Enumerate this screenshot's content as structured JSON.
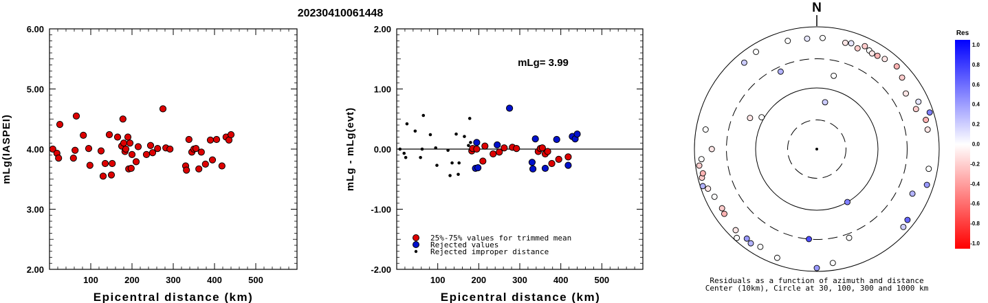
{
  "title": "20230410061448",
  "colors": {
    "accepted": "#dd0000",
    "rejected": "#0011cc",
    "improper": "#000000"
  },
  "chart_data": [
    {
      "type": "scatter",
      "id": "left",
      "xlabel": "Epicentral distance (km)",
      "ylabel": "mLg(IASPEI)",
      "xlim": [
        0,
        600
      ],
      "ylim": [
        2.0,
        6.0
      ],
      "xticks": [
        "100",
        "200",
        "300",
        "400",
        "500"
      ],
      "yticks": [
        "2.00",
        "3.00",
        "4.00",
        "5.00",
        "6.00"
      ],
      "series": [
        {
          "marker": "accepted",
          "points": [
            [
              8,
              4.0
            ],
            [
              18,
              3.93
            ],
            [
              22,
              3.85
            ],
            [
              25,
              4.41
            ],
            [
              58,
              3.85
            ],
            [
              62,
              3.98
            ],
            [
              65,
              4.55
            ],
            [
              82,
              4.23
            ],
            [
              95,
              4.01
            ],
            [
              98,
              3.73
            ],
            [
              125,
              3.97
            ],
            [
              130,
              3.55
            ],
            [
              135,
              3.76
            ],
            [
              145,
              4.24
            ],
            [
              150,
              3.57
            ],
            [
              152,
              3.76
            ],
            [
              165,
              4.2
            ],
            [
              175,
              4.05
            ],
            [
              178,
              4.5
            ],
            [
              180,
              4.1
            ],
            [
              183,
              3.96
            ],
            [
              185,
              4.0
            ],
            [
              190,
              4.2
            ],
            [
              192,
              3.67
            ],
            [
              195,
              4.1
            ],
            [
              198,
              3.68
            ],
            [
              200,
              3.91
            ],
            [
              210,
              3.79
            ],
            [
              215,
              4.04
            ],
            [
              235,
              3.91
            ],
            [
              245,
              4.06
            ],
            [
              250,
              3.94
            ],
            [
              262,
              4.01
            ],
            [
              275,
              4.67
            ],
            [
              282,
              4.02
            ],
            [
              292,
              4.0
            ],
            [
              330,
              3.72
            ],
            [
              332,
              3.65
            ],
            [
              338,
              4.16
            ],
            [
              345,
              3.95
            ],
            [
              350,
              4.0
            ],
            [
              355,
              4.01
            ],
            [
              362,
              3.67
            ],
            [
              368,
              3.95
            ],
            [
              378,
              3.75
            ],
            [
              390,
              4.15
            ],
            [
              395,
              3.82
            ],
            [
              405,
              4.16
            ],
            [
              418,
              3.72
            ],
            [
              428,
              4.2
            ],
            [
              435,
              4.15
            ],
            [
              440,
              4.24
            ]
          ]
        }
      ]
    },
    {
      "type": "scatter",
      "id": "right",
      "xlabel": "Epicentral distance (km)",
      "ylabel": "mLg - mLg(evt)",
      "xlim": [
        0,
        600
      ],
      "ylim": [
        -2.0,
        2.0
      ],
      "xticks": [
        "100",
        "200",
        "300",
        "400",
        "500"
      ],
      "yticks": [
        "-2.00",
        "-1.00",
        "0.00",
        "1.00",
        "2.00"
      ],
      "annotation": "mLg= 3.99",
      "reference_line": 0.0,
      "legend": [
        {
          "marker": "accepted",
          "label": "25%-75% values for trimmed mean"
        },
        {
          "marker": "rejected",
          "label": "Rejected values"
        },
        {
          "marker": "improper",
          "label": "Rejected improper distance"
        }
      ],
      "series": [
        {
          "marker": "improper",
          "points": [
            [
              8,
              0.0
            ],
            [
              18,
              -0.07
            ],
            [
              22,
              -0.14
            ],
            [
              25,
              0.42
            ],
            [
              45,
              0.3
            ],
            [
              58,
              -0.14
            ],
            [
              62,
              0.0
            ],
            [
              65,
              0.56
            ],
            [
              82,
              0.24
            ],
            [
              95,
              0.02
            ],
            [
              98,
              -0.27
            ],
            [
              125,
              -0.02
            ],
            [
              130,
              -0.44
            ],
            [
              135,
              -0.23
            ],
            [
              145,
              0.25
            ],
            [
              150,
              -0.42
            ],
            [
              152,
              -0.23
            ],
            [
              165,
              0.21
            ],
            [
              175,
              0.06
            ],
            [
              178,
              0.51
            ],
            [
              180,
              0.11
            ]
          ]
        },
        {
          "marker": "accepted",
          "points": [
            [
              183,
              -0.03
            ],
            [
              185,
              0.01
            ],
            [
              195,
              0.0
            ],
            [
              210,
              -0.2
            ],
            [
              215,
              0.05
            ],
            [
              235,
              -0.08
            ],
            [
              250,
              -0.05
            ],
            [
              262,
              0.02
            ],
            [
              282,
              0.03
            ],
            [
              292,
              0.01
            ],
            [
              345,
              -0.04
            ],
            [
              350,
              0.01
            ],
            [
              355,
              0.02
            ],
            [
              362,
              -0.08
            ],
            [
              368,
              -0.04
            ],
            [
              378,
              -0.24
            ],
            [
              395,
              -0.17
            ],
            [
              418,
              -0.13
            ]
          ]
        },
        {
          "marker": "rejected",
          "points": [
            [
              192,
              -0.32
            ],
            [
              195,
              0.11
            ],
            [
              198,
              -0.31
            ],
            [
              245,
              0.07
            ],
            [
              275,
              0.68
            ],
            [
              330,
              -0.22
            ],
            [
              332,
              -0.33
            ],
            [
              338,
              0.17
            ],
            [
              362,
              -0.32
            ],
            [
              390,
              0.16
            ],
            [
              418,
              -0.27
            ],
            [
              428,
              0.21
            ],
            [
              435,
              0.17
            ],
            [
              440,
              0.25
            ]
          ]
        }
      ]
    },
    {
      "type": "polar-scatter",
      "id": "azimuth",
      "north_label": "N",
      "caption_line1": "Residuals as a function of azimuth and distance",
      "caption_line2": "Center (10km), Circle at 30, 100, 300 and 1000 km",
      "rings_km": [
        30,
        100,
        300,
        1000
      ],
      "points": [
        [
          13,
          170,
          0.0
        ],
        [
          10,
          60,
          0.2
        ],
        [
          355,
          650,
          0.1
        ],
        [
          3,
          660,
          0.0
        ],
        [
          15,
          630,
          -0.1
        ],
        [
          18,
          660,
          0.1
        ],
        [
          22,
          600,
          -0.2
        ],
        [
          25,
          720,
          -0.2
        ],
        [
          28,
          670,
          0.0
        ],
        [
          30,
          640,
          -0.1
        ],
        [
          33,
          660,
          -0.3
        ],
        [
          37,
          700,
          -0.1
        ],
        [
          44,
          760,
          -0.3
        ],
        [
          50,
          660,
          -0.2
        ],
        [
          58,
          520,
          -0.1
        ],
        [
          65,
          680,
          0.1
        ],
        [
          68,
          560,
          -0.2
        ],
        [
          72,
          870,
          0.5
        ],
        [
          75,
          700,
          -0.3
        ],
        [
          80,
          690,
          -0.1
        ],
        [
          100,
          720,
          0.0
        ],
        [
          108,
          780,
          0.4
        ],
        [
          115,
          530,
          0.3
        ],
        [
          128,
          760,
          0.6
        ],
        [
          132,
          800,
          0.2
        ],
        [
          150,
          100,
          0.5
        ],
        [
          160,
          350,
          0.0
        ],
        [
          172,
          760,
          0.0
        ],
        [
          180,
          880,
          0.4
        ],
        [
          185,
          300,
          0.7
        ],
        [
          200,
          780,
          0.0
        ],
        [
          210,
          700,
          0.0
        ],
        [
          215,
          760,
          0.3
        ],
        [
          218,
          720,
          0.4
        ],
        [
          222,
          900,
          0.0
        ],
        [
          225,
          750,
          -0.1
        ],
        [
          235,
          700,
          -0.3
        ],
        [
          238,
          670,
          -0.2
        ],
        [
          245,
          700,
          0.0
        ],
        [
          250,
          780,
          -0.1
        ],
        [
          252,
          910,
          0.3
        ],
        [
          256,
          860,
          -0.2
        ],
        [
          258,
          800,
          -0.3
        ],
        [
          262,
          870,
          -0.2
        ],
        [
          265,
          780,
          0.0
        ],
        [
          270,
          520,
          -0.1
        ],
        [
          280,
          700,
          0.0
        ],
        [
          295,
          160,
          -0.1
        ],
        [
          300,
          110,
          0.0
        ],
        [
          320,
          700,
          0.2
        ],
        [
          328,
          750,
          0.0
        ],
        [
          335,
          250,
          0.3
        ],
        [
          345,
          680,
          0.0
        ]
      ]
    }
  ],
  "colorbar": {
    "title": "Res",
    "labels": [
      "1.0",
      "0.8",
      "0.6",
      "0.4",
      "0.2",
      "0.0",
      "-0.2",
      "-0.4",
      "-0.6",
      "-0.8",
      "-1.0"
    ]
  }
}
